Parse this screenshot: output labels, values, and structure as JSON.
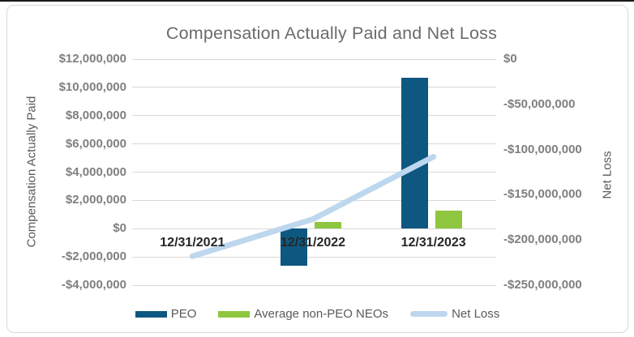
{
  "chart_data": {
    "type": "combo-bar-line",
    "title": "Compensation Actually Paid and Net Loss",
    "categories": [
      "12/31/2021",
      "12/31/2022",
      "12/31/2023"
    ],
    "series": [
      {
        "name": "PEO",
        "type": "bar",
        "axis": "left",
        "color": "#0d5780",
        "values": [
          0,
          -2600000,
          10700000
        ]
      },
      {
        "name": "Average non-PEO NEOs",
        "type": "bar",
        "axis": "left",
        "color": "#8ec63f",
        "values": [
          0,
          500000,
          1300000
        ]
      },
      {
        "name": "Net Loss",
        "type": "line",
        "axis": "right",
        "color": "#bdd7ee",
        "values": [
          -218000000,
          -177000000,
          -108000000
        ]
      }
    ],
    "left_axis": {
      "label": "Compensation Actually Paid",
      "min": -4000000,
      "max": 12000000,
      "step": 2000000,
      "tick_labels": [
        "$12,000,000",
        "$10,000,000",
        "$8,000,000",
        "$6,000,000",
        "$4,000,000",
        "$2,000,000",
        "$0",
        "-$2,000,000",
        "-$4,000,000"
      ]
    },
    "right_axis": {
      "label": "Net Loss",
      "min": -250000000,
      "max": 0,
      "step": 50000000,
      "tick_labels": [
        "$0",
        "-$50,000,000",
        "-$100,000,000",
        "-$150,000,000",
        "-$200,000,000",
        "-$250,000,000"
      ]
    },
    "grid": "horizontal",
    "legend_position": "bottom"
  },
  "colors": {
    "title": "#6b6b6b",
    "axis_title": "#595959",
    "tick_label": "#7f7f7f",
    "category_label": "#262626",
    "gridline": "#d9d9d9",
    "frame_border": "#d9d9d9",
    "legend_text": "#595959",
    "top_rule": "#1a1a1a"
  }
}
